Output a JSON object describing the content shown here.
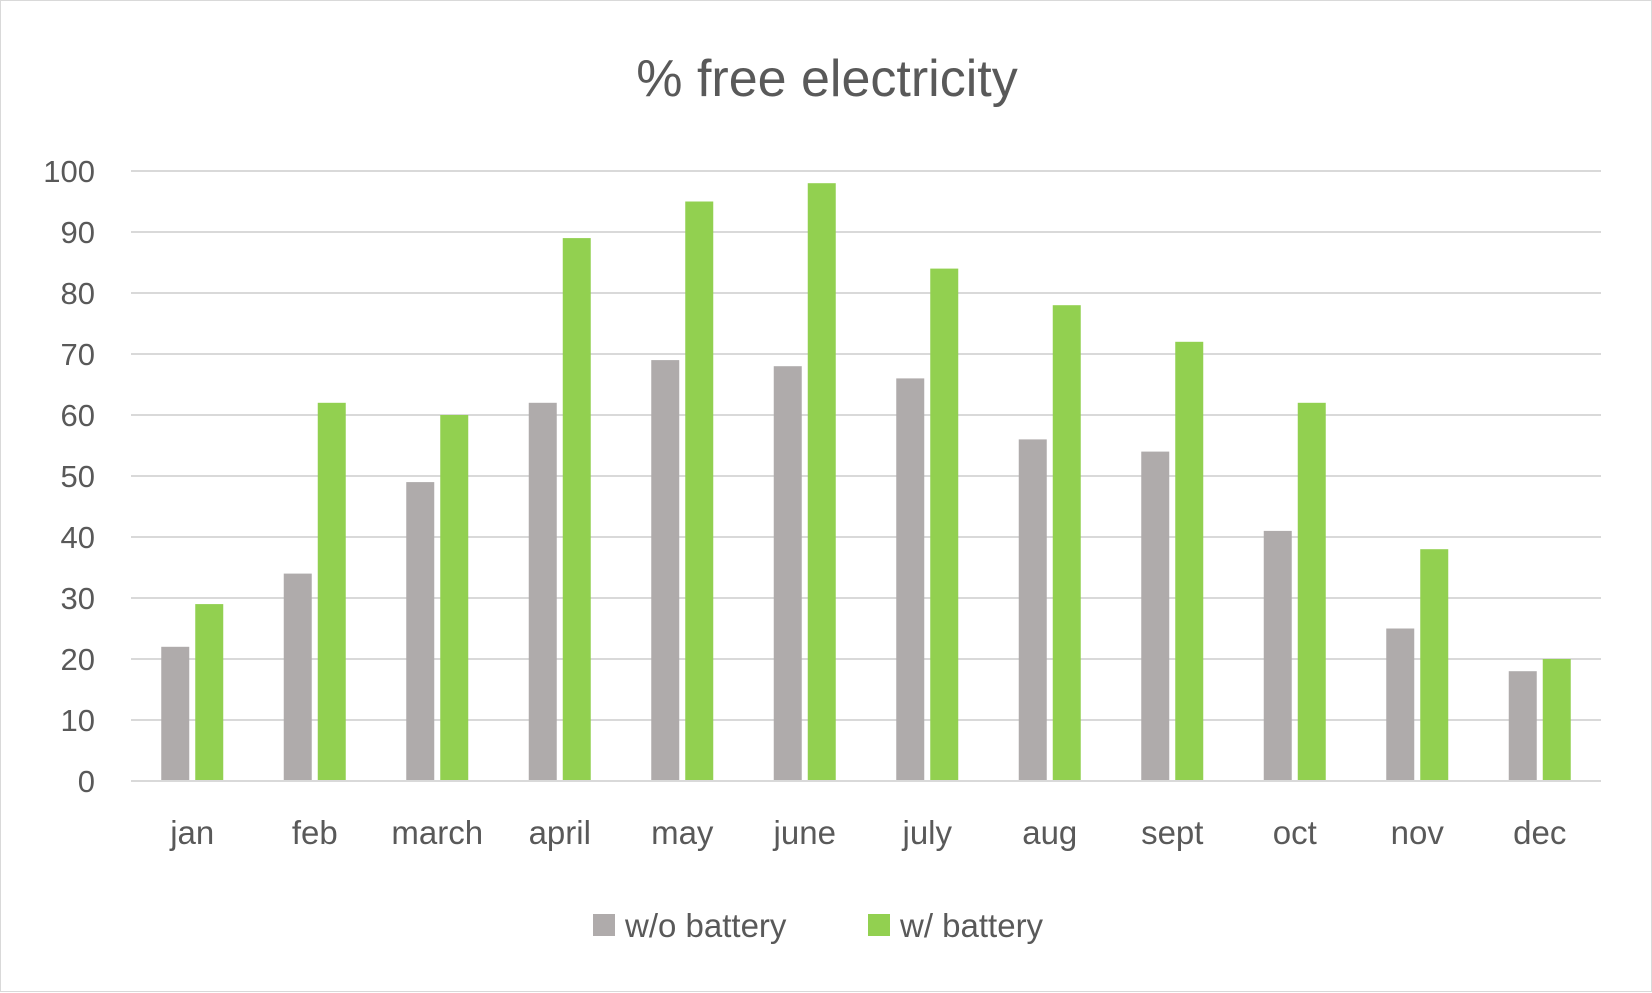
{
  "chart_data": {
    "type": "bar",
    "title": "% free electricity",
    "xlabel": "",
    "ylabel": "",
    "ylim": [
      0,
      100
    ],
    "yticks": [
      0,
      10,
      20,
      30,
      40,
      50,
      60,
      70,
      80,
      90,
      100
    ],
    "grid": true,
    "legend": "bottom",
    "categories": [
      "jan",
      "feb",
      "march",
      "april",
      "may",
      "june",
      "july",
      "aug",
      "sept",
      "oct",
      "nov",
      "dec"
    ],
    "series": [
      {
        "name": "w/o battery",
        "color": "#afabab",
        "values": [
          22,
          34,
          49,
          62,
          69,
          68,
          66,
          56,
          54,
          41,
          25,
          18
        ]
      },
      {
        "name": "w/ battery",
        "color": "#92d050",
        "values": [
          29,
          62,
          60,
          89,
          95,
          98,
          84,
          78,
          72,
          62,
          38,
          20
        ]
      }
    ]
  }
}
